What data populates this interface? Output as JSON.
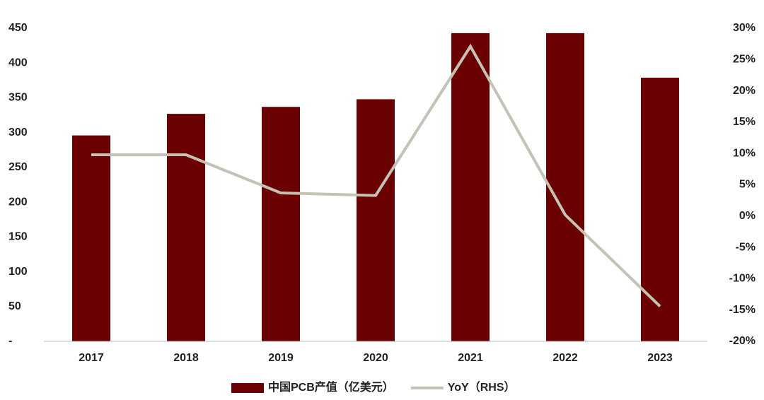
{
  "chart_data": {
    "type": "bar-line",
    "categories": [
      "2017",
      "2018",
      "2019",
      "2020",
      "2021",
      "2022",
      "2023"
    ],
    "series": [
      {
        "name": "中国PCB产值（亿美元）",
        "color": "#6b0000",
        "type": "bar",
        "values": [
          296,
          327,
          337,
          348,
          443,
          443,
          379
        ]
      },
      {
        "name": "YoY（RHS）",
        "color": "#c4c2b4",
        "type": "line",
        "axis": "y2",
        "values": [
          9.8,
          9.8,
          3.7,
          3.3,
          27.1,
          0.2,
          -14.4
        ]
      }
    ],
    "ylim": [
      0,
      450
    ],
    "yticks": [
      {
        "value": 0,
        "label": "-"
      },
      50,
      100,
      150,
      200,
      250,
      300,
      350,
      400,
      450
    ],
    "y2lim": [
      -20,
      30
    ],
    "y2ticks": [
      {
        "value": -20,
        "label": "-20%"
      },
      {
        "value": -15,
        "label": "-15%"
      },
      {
        "value": -10,
        "label": "-10%"
      },
      {
        "value": -5,
        "label": "-5%"
      },
      {
        "value": 0,
        "label": "0%"
      },
      {
        "value": 5,
        "label": "5%"
      },
      {
        "value": 10,
        "label": "10%"
      },
      {
        "value": 15,
        "label": "15%"
      },
      {
        "value": 20,
        "label": "20%"
      },
      {
        "value": 25,
        "label": "25%"
      },
      {
        "value": 30,
        "label": "30%"
      }
    ],
    "legend": "bottom"
  }
}
